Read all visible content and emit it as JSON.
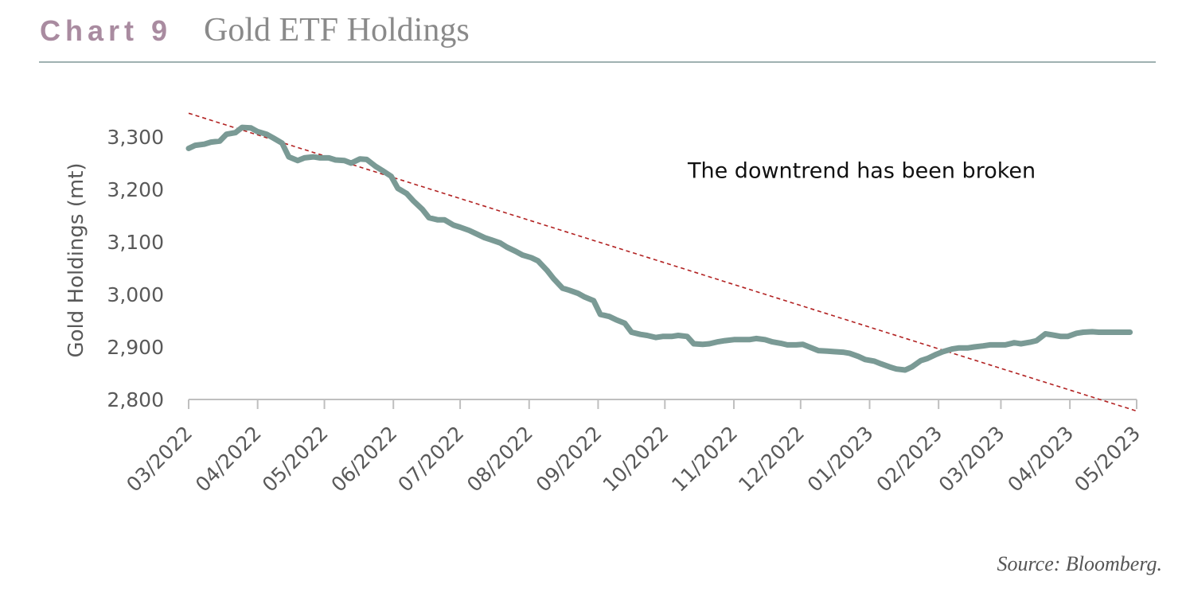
{
  "header": {
    "chart_label": "Chart 9",
    "title": "Gold ETF Holdings"
  },
  "source": "Source: Bloomberg.",
  "colors": {
    "series": "#7a9a95",
    "trendline": "#b22222",
    "axis": "#bfbfbf",
    "text": "#595959",
    "label_accent": "#a98ba0"
  },
  "chart_data": {
    "type": "line",
    "title": "",
    "xlabel": "",
    "ylabel": "Gold Holdings (mt)",
    "ylim": [
      2800,
      3300
    ],
    "yticks": [
      2800,
      2900,
      3000,
      3100,
      3200,
      3300
    ],
    "yticklabels": [
      "2,800",
      "2,900",
      "3,000",
      "3,100",
      "3,200",
      "3,300"
    ],
    "xticks": [
      "2022-03-01",
      "2022-04-01",
      "2022-05-01",
      "2022-06-01",
      "2022-07-01",
      "2022-08-01",
      "2022-09-01",
      "2022-10-01",
      "2022-11-01",
      "2022-12-01",
      "2023-01-01",
      "2023-02-01",
      "2023-03-01",
      "2023-04-01",
      "2023-05-01"
    ],
    "xticklabels": [
      "03/2022",
      "04/2022",
      "05/2022",
      "06/2022",
      "07/2022",
      "08/2022",
      "09/2022",
      "10/2022",
      "11/2022",
      "12/2022",
      "01/2023",
      "02/2023",
      "03/2023",
      "04/2023",
      "05/2023"
    ],
    "xlim": [
      "2022-03-01",
      "2023-05-01"
    ],
    "grid": false,
    "series": [
      {
        "x": [
          "2022-03-01",
          "2022-03-04",
          "2022-03-08",
          "2022-03-11",
          "2022-03-15",
          "2022-03-18",
          "2022-03-22",
          "2022-03-25",
          "2022-03-29",
          "2022-04-01",
          "2022-04-05",
          "2022-04-08",
          "2022-04-12",
          "2022-04-15",
          "2022-04-19",
          "2022-04-22",
          "2022-04-26",
          "2022-04-29",
          "2022-05-03",
          "2022-05-06",
          "2022-05-10",
          "2022-05-13",
          "2022-05-17",
          "2022-05-20",
          "2022-05-24",
          "2022-05-27",
          "2022-05-31",
          "2022-06-03",
          "2022-06-07",
          "2022-06-10",
          "2022-06-14",
          "2022-06-17",
          "2022-06-21",
          "2022-06-24",
          "2022-06-28",
          "2022-07-01",
          "2022-07-05",
          "2022-07-08",
          "2022-07-12",
          "2022-07-15",
          "2022-07-19",
          "2022-07-22",
          "2022-07-26",
          "2022-07-29",
          "2022-08-02",
          "2022-08-05",
          "2022-08-09",
          "2022-08-12",
          "2022-08-16",
          "2022-08-19",
          "2022-08-23",
          "2022-08-26",
          "2022-08-30",
          "2022-09-02",
          "2022-09-06",
          "2022-09-09",
          "2022-09-13",
          "2022-09-16",
          "2022-09-20",
          "2022-09-23",
          "2022-09-27",
          "2022-09-30",
          "2022-10-04",
          "2022-10-07",
          "2022-10-11",
          "2022-10-14",
          "2022-10-18",
          "2022-10-21",
          "2022-10-25",
          "2022-10-28",
          "2022-11-01",
          "2022-11-04",
          "2022-11-08",
          "2022-11-11",
          "2022-11-15",
          "2022-11-18",
          "2022-11-22",
          "2022-11-25",
          "2022-11-29",
          "2022-12-02",
          "2022-12-06",
          "2022-12-09",
          "2022-12-13",
          "2022-12-16",
          "2022-12-20",
          "2022-12-23",
          "2022-12-27",
          "2022-12-30",
          "2023-01-03",
          "2023-01-06",
          "2023-01-10",
          "2023-01-13",
          "2023-01-17",
          "2023-01-20",
          "2023-01-24",
          "2023-01-27",
          "2023-01-31",
          "2023-02-03",
          "2023-02-07",
          "2023-02-10",
          "2023-02-14",
          "2023-02-17",
          "2023-02-21",
          "2023-02-24",
          "2023-02-28",
          "2023-03-03",
          "2023-03-07",
          "2023-03-10",
          "2023-03-14",
          "2023-03-17",
          "2023-03-21",
          "2023-03-24",
          "2023-03-28",
          "2023-03-31",
          "2023-04-04",
          "2023-04-07",
          "2023-04-11",
          "2023-04-14",
          "2023-04-18",
          "2023-04-21",
          "2023-04-25",
          "2023-04-28"
        ],
        "y": [
          3278,
          3284,
          3286,
          3290,
          3292,
          3305,
          3308,
          3318,
          3317,
          3310,
          3305,
          3298,
          3288,
          3262,
          3255,
          3260,
          3262,
          3260,
          3260,
          3256,
          3255,
          3250,
          3258,
          3257,
          3244,
          3236,
          3225,
          3202,
          3192,
          3178,
          3162,
          3146,
          3142,
          3142,
          3132,
          3128,
          3122,
          3116,
          3108,
          3104,
          3098,
          3090,
          3082,
          3075,
          3070,
          3064,
          3046,
          3030,
          3012,
          3008,
          3002,
          2995,
          2988,
          2962,
          2958,
          2952,
          2945,
          2928,
          2924,
          2922,
          2918,
          2920,
          2920,
          2922,
          2920,
          2906,
          2905,
          2906,
          2910,
          2912,
          2914,
          2914,
          2914,
          2916,
          2914,
          2910,
          2907,
          2904,
          2904,
          2905,
          2898,
          2893,
          2892,
          2891,
          2890,
          2888,
          2882,
          2876,
          2873,
          2868,
          2862,
          2858,
          2856,
          2862,
          2874,
          2878,
          2886,
          2891,
          2896,
          2898,
          2898,
          2900,
          2902,
          2904,
          2904,
          2904,
          2908,
          2906,
          2909,
          2912,
          2925,
          2923,
          2920,
          2920,
          2926,
          2928,
          2929,
          2928,
          2928,
          2928,
          2928,
          2928
        ]
      },
      {
        "x": [
          "2022-03-01",
          "2023-05-01"
        ],
        "y": [
          3345,
          2778
        ]
      }
    ],
    "annotations": [
      {
        "text": "The downtrend has been broken",
        "x": "2022-12-01",
        "y": 3225
      }
    ]
  }
}
